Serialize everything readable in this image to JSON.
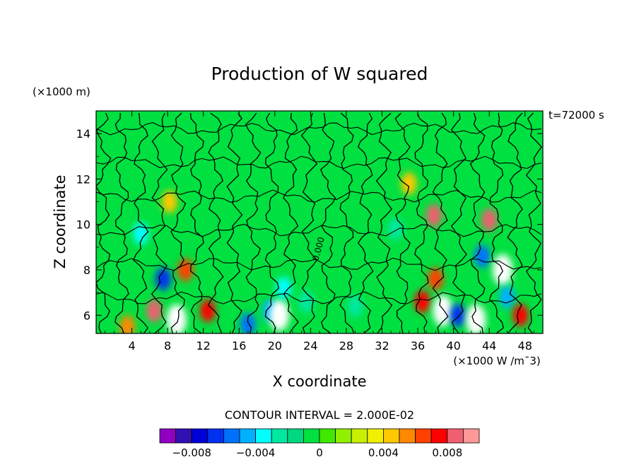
{
  "chart_data": {
    "type": "heatmap",
    "title": "Production of W squared",
    "xlabel": "X coordinate",
    "ylabel": "Z coordinate",
    "x_unit": "(×1000 W /m¯3)",
    "y_unit": "(×1000 m)",
    "time_label": "t=72000 s",
    "contour_label": "0.000",
    "contour_interval": "CONTOUR INTERVAL = 2.000E-02",
    "xlim": [
      0,
      50
    ],
    "ylim": [
      5.2,
      15
    ],
    "x_ticks": [
      4,
      8,
      12,
      16,
      20,
      24,
      28,
      32,
      36,
      40,
      44,
      48
    ],
    "y_ticks": [
      6,
      8,
      10,
      12,
      14
    ],
    "colorbar": {
      "levels": [
        -0.009,
        -0.008,
        -0.007,
        -0.006,
        -0.005,
        -0.004,
        -0.003,
        -0.002,
        -0.001,
        0,
        0.001,
        0.002,
        0.003,
        0.004,
        0.005,
        0.006,
        0.007,
        0.008,
        0.009
      ],
      "colors": [
        "#9000c0",
        "#3010b0",
        "#0000d8",
        "#0030f0",
        "#0070ff",
        "#00b0ff",
        "#00ffff",
        "#00e8a0",
        "#00d880",
        "#00e040",
        "#40e800",
        "#90f000",
        "#c8f000",
        "#f0f000",
        "#ffc800",
        "#ff8800",
        "#ff4000",
        "#ff0000",
        "#f06070",
        "#ff9898"
      ],
      "tick_labels": [
        "−0.008",
        "−0.004",
        "0",
        "0.004",
        "0.008"
      ],
      "tick_values": [
        -0.008,
        -0.004,
        0,
        0.004,
        0.008
      ]
    },
    "features": [
      {
        "x": 9.0,
        "z": 5.8,
        "value": 0.03
      },
      {
        "x": 6.5,
        "z": 6.2,
        "value": 0.008
      },
      {
        "x": 7.5,
        "z": 7.6,
        "value": -0.007
      },
      {
        "x": 5.0,
        "z": 9.6,
        "value": -0.004
      },
      {
        "x": 10.0,
        "z": 8.0,
        "value": 0.006
      },
      {
        "x": 12.5,
        "z": 6.2,
        "value": 0.007
      },
      {
        "x": 17.0,
        "z": 5.6,
        "value": -0.006
      },
      {
        "x": 19.5,
        "z": 6.2,
        "value": -0.005
      },
      {
        "x": 20.5,
        "z": 6.0,
        "value": 0.02
      },
      {
        "x": 21.0,
        "z": 7.2,
        "value": -0.004
      },
      {
        "x": 23.5,
        "z": 6.6,
        "value": -0.003
      },
      {
        "x": 36.5,
        "z": 6.6,
        "value": 0.007
      },
      {
        "x": 38.0,
        "z": 7.6,
        "value": 0.006
      },
      {
        "x": 37.8,
        "z": 10.4,
        "value": 0.008
      },
      {
        "x": 38.8,
        "z": 6.2,
        "value": 0.03
      },
      {
        "x": 40.5,
        "z": 6.0,
        "value": -0.007
      },
      {
        "x": 42.5,
        "z": 5.8,
        "value": 0.03
      },
      {
        "x": 44.0,
        "z": 10.2,
        "value": 0.008
      },
      {
        "x": 43.2,
        "z": 8.6,
        "value": -0.006
      },
      {
        "x": 45.5,
        "z": 8.0,
        "value": 0.02
      },
      {
        "x": 46.0,
        "z": 6.8,
        "value": -0.005
      },
      {
        "x": 47.5,
        "z": 6.0,
        "value": 0.007
      },
      {
        "x": 3.5,
        "z": 5.5,
        "value": 0.005
      },
      {
        "x": 29.0,
        "z": 6.4,
        "value": -0.003
      },
      {
        "x": 33.5,
        "z": 9.8,
        "value": -0.003
      },
      {
        "x": 35.0,
        "z": 11.8,
        "value": 0.004
      },
      {
        "x": 8.2,
        "z": 11.0,
        "value": 0.004
      }
    ]
  }
}
